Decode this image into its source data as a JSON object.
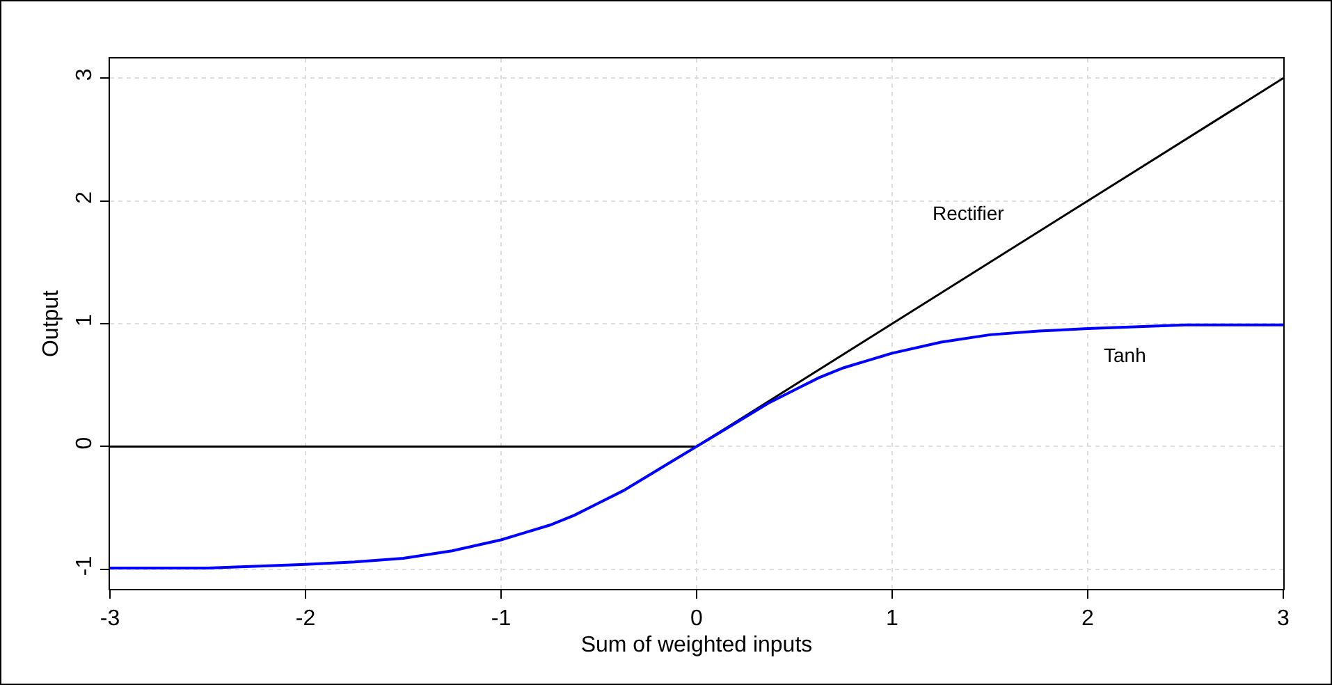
{
  "chart_data": {
    "type": "line",
    "xlabel": "Sum of weighted inputs",
    "ylabel": "Output",
    "xlim": [
      -3,
      3
    ],
    "xticks": [
      -3,
      -2,
      -1,
      0,
      1,
      2,
      3
    ],
    "ylim": [
      -1.16,
      3.16
    ],
    "yticks": [
      -1,
      0,
      1,
      2,
      3
    ],
    "grid": true,
    "legend": false,
    "marker": "none",
    "line_style": "solid",
    "series": [
      {
        "name": "Rectifier",
        "color": "#000000",
        "x": [
          -3,
          0,
          3
        ],
        "values": [
          0,
          0,
          3
        ]
      },
      {
        "name": "Tanh",
        "color": "#0000ff",
        "x": [
          -3,
          -2.5,
          -2,
          -1.75,
          -1.5,
          -1.25,
          -1,
          -0.875,
          -0.75,
          -0.625,
          -0.5,
          -0.375,
          -0.25,
          -0.125,
          0,
          0.125,
          0.25,
          0.375,
          0.5,
          0.625,
          0.75,
          0.875,
          1,
          1.25,
          1.5,
          1.75,
          2,
          2.5,
          3
        ],
        "values": [
          -0.99,
          -0.99,
          -0.96,
          -0.94,
          -0.91,
          -0.85,
          -0.76,
          -0.7,
          -0.64,
          -0.56,
          -0.46,
          -0.36,
          -0.24,
          -0.12,
          0,
          0.12,
          0.24,
          0.36,
          0.46,
          0.56,
          0.64,
          0.7,
          0.76,
          0.85,
          0.91,
          0.94,
          0.96,
          0.99,
          0.99
        ]
      }
    ]
  }
}
